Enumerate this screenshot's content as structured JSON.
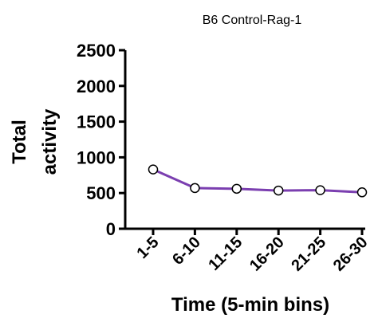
{
  "chart_data": {
    "type": "line",
    "title": "B6 Control-Rag-1",
    "xlabel": "Time (5-min bins)",
    "ylabel_lines": [
      "Total",
      "activity"
    ],
    "categories": [
      "1-5",
      "6-10",
      "11-15",
      "16-20",
      "21-25",
      "26-30"
    ],
    "series": [
      {
        "values": [
          830,
          570,
          560,
          535,
          540,
          510
        ]
      }
    ],
    "ylim": [
      0,
      2500
    ],
    "yticks": [
      0,
      500,
      1000,
      1500,
      2000,
      2500
    ],
    "grid": false,
    "line_color": "#7b3fb0",
    "marker_fill": "#ffffff",
    "marker_edge": "#000000",
    "axis_color": "#000000"
  }
}
